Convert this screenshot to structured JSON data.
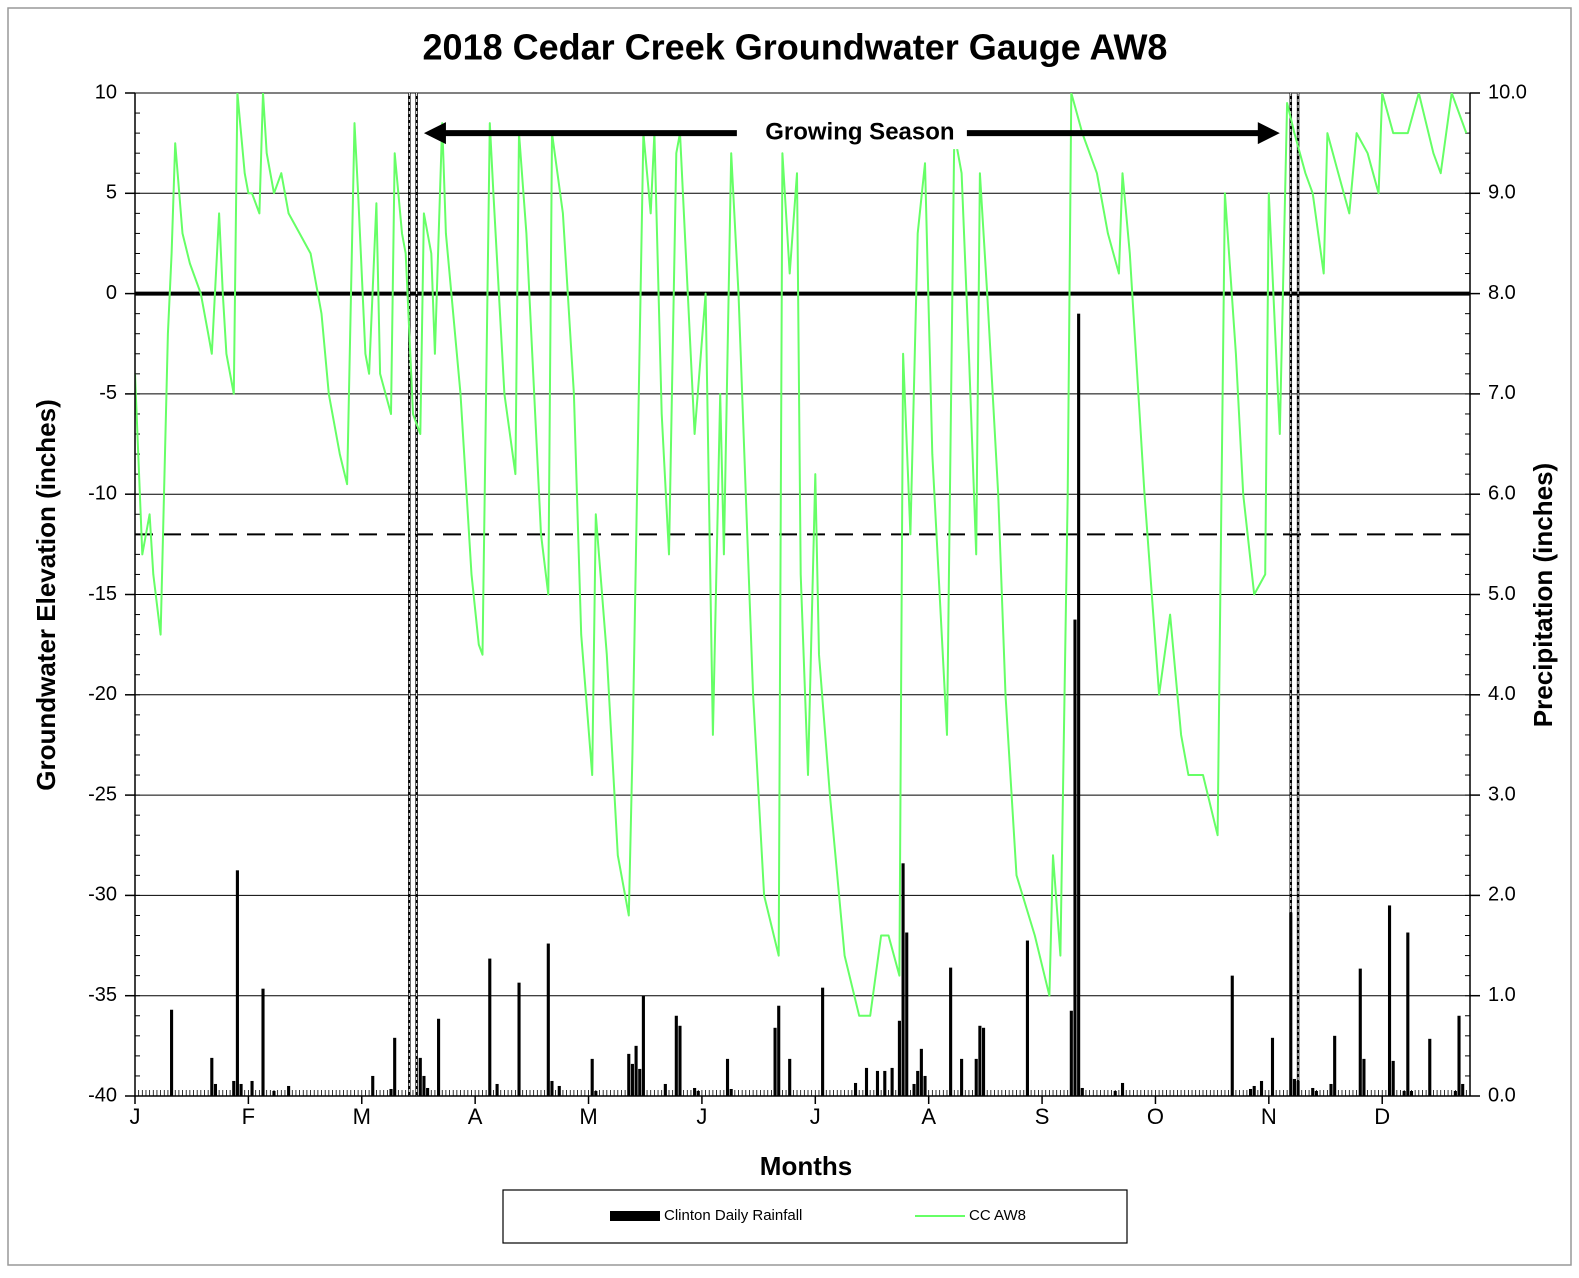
{
  "chart_data": {
    "type": "line",
    "title": "2018 Cedar Creek Groundwater Gauge AW8",
    "x_label": "Months",
    "y_label": "Groundwater Elevation (inches)",
    "y2_label": "Precipitation (inches)",
    "xlim": [
      1,
      366
    ],
    "xticks": [
      {
        "value": 1,
        "label": "J"
      },
      {
        "value": 32,
        "label": "F"
      },
      {
        "value": 63,
        "label": "M"
      },
      {
        "value": 94,
        "label": "A"
      },
      {
        "value": 125,
        "label": "M"
      },
      {
        "value": 156,
        "label": "J"
      },
      {
        "value": 187,
        "label": "J"
      },
      {
        "value": 218,
        "label": "A"
      },
      {
        "value": 249,
        "label": "S"
      },
      {
        "value": 280,
        "label": "O"
      },
      {
        "value": 311,
        "label": "N"
      },
      {
        "value": 342,
        "label": "D"
      }
    ],
    "ylim": [
      -40,
      10
    ],
    "yticks": [
      10,
      5,
      0,
      -5,
      -10,
      -15,
      -20,
      -25,
      -30,
      -35,
      -40
    ],
    "y2lim": [
      0,
      10
    ],
    "y2ticks": [
      {
        "value": 10,
        "label": "10.0"
      },
      {
        "value": 9,
        "label": "9.0"
      },
      {
        "value": 8,
        "label": "8.0"
      },
      {
        "value": 7,
        "label": "7.0"
      },
      {
        "value": 6,
        "label": "6.0"
      },
      {
        "value": 5,
        "label": "5.0"
      },
      {
        "value": 4,
        "label": "4.0"
      },
      {
        "value": 3,
        "label": "3.0"
      },
      {
        "value": 2,
        "label": "2.0"
      },
      {
        "value": 1,
        "label": "1.0"
      },
      {
        "value": 0,
        "label": "0.0"
      }
    ],
    "grid": true,
    "hlines": [
      {
        "y": 0,
        "style": "solid"
      },
      {
        "y": -12,
        "style": "dashed"
      }
    ],
    "vlines": [
      76,
      78,
      317,
      319
    ],
    "annotation": {
      "text": "Growing Season",
      "x": [
        80,
        314
      ],
      "y": 8
    },
    "series": [
      {
        "name": "Clinton Daily Rainfall",
        "type": "bar",
        "axis": "y2",
        "color": "#000000",
        "x": [
          11,
          22,
          23,
          28,
          29,
          30,
          33,
          36,
          39,
          43,
          66,
          71,
          72,
          79,
          80,
          81,
          84,
          98,
          100,
          106,
          114,
          115,
          117,
          126,
          127,
          136,
          137,
          138,
          139,
          140,
          146,
          149,
          150,
          154,
          155,
          163,
          164,
          176,
          177,
          180,
          189,
          198,
          201,
          204,
          206,
          208,
          210,
          211,
          212,
          214,
          215,
          216,
          217,
          224,
          227,
          231,
          232,
          233,
          245,
          257,
          258,
          259,
          260,
          269,
          271,
          301,
          306,
          307,
          309,
          312,
          317,
          318,
          319,
          323,
          324,
          328,
          329,
          336,
          337,
          344,
          345,
          348,
          349,
          350,
          355,
          362,
          363,
          364
        ],
        "values": [
          0.86,
          0.38,
          0.12,
          0.15,
          2.25,
          0.12,
          0.15,
          1.07,
          0.05,
          0.1,
          0.2,
          0.07,
          0.58,
          0.38,
          0.2,
          0.08,
          0.77,
          1.37,
          0.12,
          1.13,
          1.52,
          0.15,
          0.1,
          0.37,
          0.05,
          0.42,
          0.32,
          0.5,
          0.27,
          1.0,
          0.12,
          0.8,
          0.7,
          0.08,
          0.05,
          0.37,
          0.07,
          0.68,
          0.9,
          0.37,
          1.08,
          0.13,
          0.28,
          0.25,
          0.25,
          0.28,
          0.75,
          2.32,
          1.63,
          0.12,
          0.25,
          0.47,
          0.2,
          1.28,
          0.37,
          0.37,
          0.7,
          0.68,
          1.55,
          0.85,
          4.75,
          7.8,
          0.08,
          0.05,
          0.13,
          1.2,
          0.07,
          0.1,
          0.15,
          0.58,
          1.83,
          0.17,
          0.15,
          0.08,
          0.05,
          0.12,
          0.6,
          1.27,
          0.37,
          1.9,
          0.35,
          0.05,
          1.63,
          0.05,
          0.57,
          0.05,
          0.8,
          0.12
        ]
      },
      {
        "name": "CC AW8",
        "type": "line",
        "color": "#66ff66",
        "x": [
          1,
          3,
          5,
          6,
          8,
          10,
          11,
          12,
          14,
          16,
          19,
          21,
          22,
          24,
          25,
          26,
          28,
          29,
          31,
          32,
          33,
          35,
          36,
          37,
          39,
          41,
          43,
          46,
          49,
          52,
          54,
          57,
          59,
          61,
          62,
          64,
          65,
          67,
          68,
          71,
          72,
          74,
          75,
          77,
          79,
          80,
          82,
          83,
          85,
          86,
          90,
          93,
          95,
          96,
          98,
          99,
          102,
          105,
          106,
          108,
          112,
          114,
          115,
          118,
          121,
          123,
          126,
          127,
          130,
          133,
          136,
          137,
          140,
          142,
          143,
          145,
          147,
          149,
          150,
          154,
          157,
          159,
          161,
          162,
          164,
          166,
          170,
          173,
          177,
          178,
          180,
          182,
          183,
          185,
          187,
          188,
          191,
          195,
          199,
          202,
          205,
          207,
          210,
          211,
          213,
          215,
          217,
          219,
          223,
          225,
          227,
          229,
          231,
          232,
          234,
          237,
          239,
          242,
          247,
          251,
          252,
          254,
          256,
          257,
          260,
          264,
          267,
          270,
          271,
          273,
          277,
          281,
          284,
          287,
          289,
          293,
          297,
          299,
          302,
          304,
          307,
          310,
          311,
          314,
          316,
          318,
          321,
          323,
          326,
          327,
          330,
          333,
          335,
          338,
          341,
          342,
          345,
          349,
          352,
          356,
          358,
          361,
          365
        ],
        "values": [
          -4,
          -13,
          -11,
          -14,
          -17,
          -2,
          2,
          7.5,
          3,
          1.5,
          0,
          -2,
          -3,
          4,
          0,
          -3,
          -5,
          10,
          6,
          5,
          5,
          4,
          10,
          7,
          5,
          6,
          4,
          3,
          2,
          -1,
          -5,
          -8,
          -9.5,
          8.5,
          5,
          -3,
          -4,
          4.5,
          -4,
          -6,
          7,
          3,
          2,
          -6,
          -7,
          4,
          2,
          -3,
          8.5,
          3,
          -5,
          -14,
          -17.5,
          -18,
          8.5,
          5,
          -5,
          -9,
          8,
          3,
          -12,
          -15,
          8,
          4,
          -5,
          -17,
          -24,
          -11,
          -18,
          -28,
          -31,
          -23,
          8,
          4,
          8,
          -6,
          -13,
          7,
          8,
          -7,
          0,
          -22,
          -5,
          -13,
          7,
          0,
          -20,
          -30,
          -33,
          7,
          1,
          6,
          -14,
          -24,
          -9,
          -18,
          -25,
          -33,
          -36,
          -36,
          -32,
          -32,
          -34,
          -3,
          -12,
          3,
          6.5,
          -8,
          -22,
          8,
          6,
          -3,
          -13,
          6,
          0,
          -10,
          -20,
          -29,
          -32,
          -35,
          -28,
          -33,
          -10,
          10,
          8,
          6,
          3,
          1,
          6,
          2,
          -10,
          -20,
          -16,
          -22,
          -24,
          -24,
          -27,
          5,
          -3,
          -10,
          -15,
          -14,
          5,
          -7,
          9.5,
          8,
          6,
          5,
          1,
          8,
          6,
          4,
          8,
          7,
          5,
          10,
          8,
          8,
          10,
          7,
          6,
          10,
          8
        ]
      }
    ]
  }
}
